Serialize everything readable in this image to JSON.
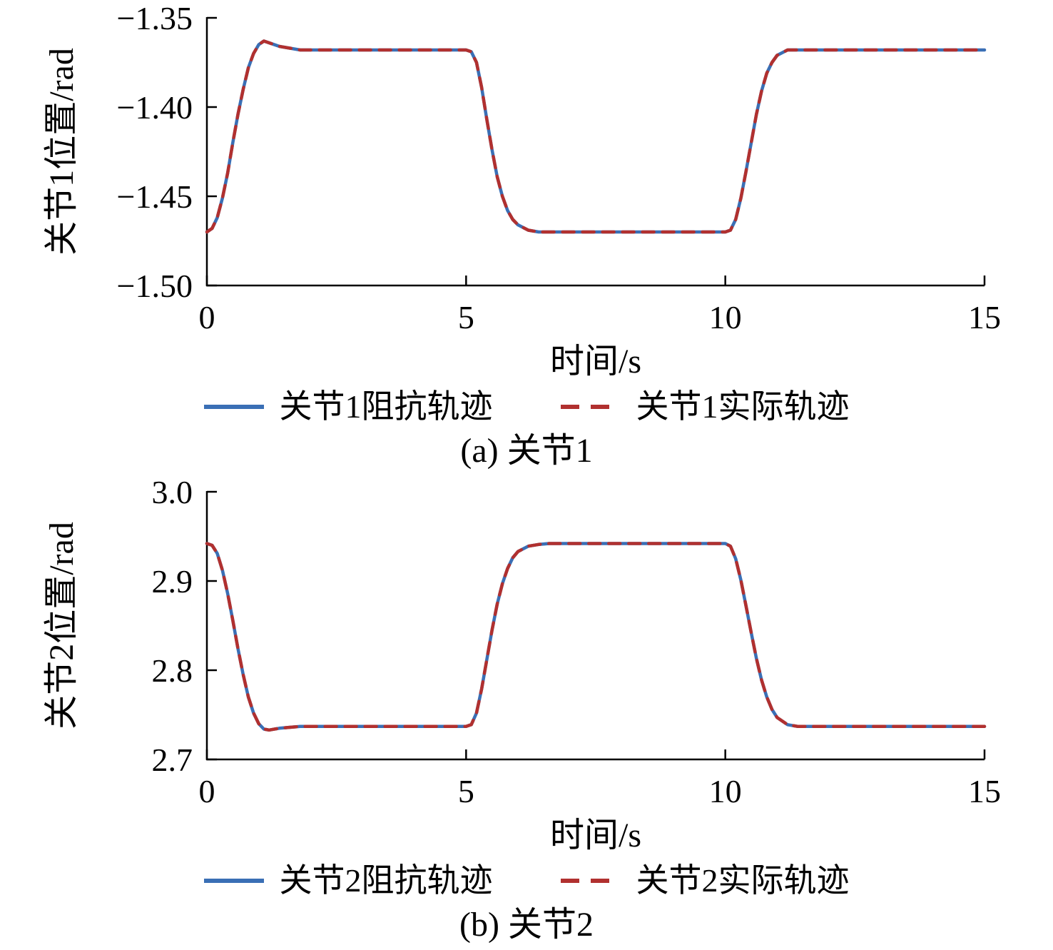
{
  "page": {
    "background": "#ffffff",
    "text_color": "#000000"
  },
  "chart_data": [
    {
      "id": "joint1",
      "type": "line",
      "title": "",
      "xlabel": "时间/s",
      "ylabel": "关节1位置/rad",
      "caption": "(a) 关节1",
      "legend_position": "below",
      "grid": false,
      "xlim": [
        0,
        15
      ],
      "ylim": [
        -1.5,
        -1.35
      ],
      "xticks": [
        0,
        5,
        10,
        15
      ],
      "xtick_labels": [
        "0",
        "5",
        "10",
        "15"
      ],
      "yticks": [
        -1.5,
        -1.45,
        -1.4,
        -1.35
      ],
      "ytick_labels": [
        "−1.50",
        "−1.45",
        "−1.40",
        "−1.35"
      ],
      "x": [
        0,
        0.1,
        0.2,
        0.3,
        0.4,
        0.5,
        0.6,
        0.7,
        0.8,
        0.9,
        1.0,
        1.1,
        1.2,
        1.4,
        1.6,
        1.8,
        2.0,
        2.5,
        3.0,
        3.5,
        4.0,
        4.5,
        5.0,
        5.1,
        5.2,
        5.3,
        5.4,
        5.5,
        5.6,
        5.7,
        5.8,
        5.9,
        6.0,
        6.2,
        6.4,
        6.6,
        7.0,
        7.5,
        8.0,
        8.5,
        9.0,
        9.5,
        10.0,
        10.1,
        10.2,
        10.3,
        10.4,
        10.5,
        10.6,
        10.7,
        10.8,
        10.9,
        11.0,
        11.2,
        11.4,
        11.6,
        12.0,
        13.0,
        14.0,
        15.0
      ],
      "series": [
        {
          "name": "关节1阻抗轨迹",
          "color": "#3A6FB5",
          "dash": null,
          "width": 4.5,
          "values": [
            -1.47,
            -1.468,
            -1.462,
            -1.451,
            -1.437,
            -1.42,
            -1.404,
            -1.39,
            -1.378,
            -1.37,
            -1.365,
            -1.363,
            -1.364,
            -1.366,
            -1.367,
            -1.368,
            -1.368,
            -1.368,
            -1.368,
            -1.368,
            -1.368,
            -1.368,
            -1.368,
            -1.369,
            -1.375,
            -1.389,
            -1.407,
            -1.424,
            -1.439,
            -1.45,
            -1.458,
            -1.463,
            -1.466,
            -1.469,
            -1.47,
            -1.47,
            -1.47,
            -1.47,
            -1.47,
            -1.47,
            -1.47,
            -1.47,
            -1.47,
            -1.469,
            -1.463,
            -1.451,
            -1.436,
            -1.42,
            -1.404,
            -1.391,
            -1.381,
            -1.375,
            -1.371,
            -1.368,
            -1.368,
            -1.368,
            -1.368,
            -1.368,
            -1.368,
            -1.368
          ]
        },
        {
          "name": "关节1实际轨迹",
          "color": "#B1302F",
          "dash": [
            16,
            12
          ],
          "width": 4.5,
          "values": [
            -1.47,
            -1.468,
            -1.462,
            -1.451,
            -1.437,
            -1.42,
            -1.404,
            -1.39,
            -1.378,
            -1.37,
            -1.365,
            -1.363,
            -1.364,
            -1.366,
            -1.367,
            -1.368,
            -1.368,
            -1.368,
            -1.368,
            -1.368,
            -1.368,
            -1.368,
            -1.368,
            -1.369,
            -1.375,
            -1.389,
            -1.407,
            -1.424,
            -1.439,
            -1.45,
            -1.458,
            -1.463,
            -1.466,
            -1.469,
            -1.47,
            -1.47,
            -1.47,
            -1.47,
            -1.47,
            -1.47,
            -1.47,
            -1.47,
            -1.47,
            -1.469,
            -1.463,
            -1.451,
            -1.436,
            -1.42,
            -1.404,
            -1.391,
            -1.381,
            -1.375,
            -1.371,
            -1.368,
            -1.368,
            -1.368,
            -1.368,
            -1.368,
            -1.368,
            -1.368
          ]
        }
      ]
    },
    {
      "id": "joint2",
      "type": "line",
      "title": "",
      "xlabel": "时间/s",
      "ylabel": "关节2位置/rad",
      "caption": "(b) 关节2",
      "legend_position": "below",
      "grid": false,
      "xlim": [
        0,
        15
      ],
      "ylim": [
        2.7,
        3.0
      ],
      "xticks": [
        0,
        5,
        10,
        15
      ],
      "xtick_labels": [
        "0",
        "5",
        "10",
        "15"
      ],
      "yticks": [
        2.7,
        2.8,
        2.9,
        3.0
      ],
      "ytick_labels": [
        "2.7",
        "2.8",
        "2.9",
        "3.0"
      ],
      "x": [
        0,
        0.1,
        0.2,
        0.3,
        0.4,
        0.5,
        0.6,
        0.7,
        0.8,
        0.9,
        1.0,
        1.1,
        1.2,
        1.4,
        1.6,
        1.8,
        2.0,
        2.5,
        3.0,
        3.5,
        4.0,
        4.5,
        5.0,
        5.1,
        5.2,
        5.3,
        5.4,
        5.5,
        5.6,
        5.7,
        5.8,
        5.9,
        6.0,
        6.2,
        6.4,
        6.6,
        7.0,
        7.5,
        8.0,
        8.5,
        9.0,
        9.5,
        10.0,
        10.1,
        10.2,
        10.3,
        10.4,
        10.5,
        10.6,
        10.7,
        10.8,
        10.9,
        11.0,
        11.2,
        11.4,
        11.6,
        12.0,
        13.0,
        14.0,
        15.0
      ],
      "series": [
        {
          "name": "关节2阻抗轨迹",
          "color": "#3A6FB5",
          "dash": null,
          "width": 4.5,
          "values": [
            2.942,
            2.94,
            2.931,
            2.912,
            2.886,
            2.856,
            2.824,
            2.795,
            2.77,
            2.752,
            2.74,
            2.734,
            2.733,
            2.735,
            2.736,
            2.737,
            2.737,
            2.737,
            2.737,
            2.737,
            2.737,
            2.737,
            2.737,
            2.739,
            2.752,
            2.779,
            2.812,
            2.845,
            2.874,
            2.897,
            2.914,
            2.926,
            2.933,
            2.939,
            2.941,
            2.942,
            2.942,
            2.942,
            2.942,
            2.942,
            2.942,
            2.942,
            2.942,
            2.939,
            2.925,
            2.901,
            2.872,
            2.842,
            2.813,
            2.789,
            2.77,
            2.756,
            2.747,
            2.739,
            2.737,
            2.737,
            2.737,
            2.737,
            2.737,
            2.737
          ]
        },
        {
          "name": "关节2实际轨迹",
          "color": "#B1302F",
          "dash": [
            16,
            12
          ],
          "width": 4.5,
          "values": [
            2.942,
            2.94,
            2.931,
            2.912,
            2.886,
            2.856,
            2.824,
            2.795,
            2.77,
            2.752,
            2.74,
            2.734,
            2.733,
            2.735,
            2.736,
            2.737,
            2.737,
            2.737,
            2.737,
            2.737,
            2.737,
            2.737,
            2.737,
            2.739,
            2.752,
            2.779,
            2.812,
            2.845,
            2.874,
            2.897,
            2.914,
            2.926,
            2.933,
            2.939,
            2.941,
            2.942,
            2.942,
            2.942,
            2.942,
            2.942,
            2.942,
            2.942,
            2.942,
            2.939,
            2.925,
            2.901,
            2.872,
            2.842,
            2.813,
            2.789,
            2.77,
            2.756,
            2.747,
            2.739,
            2.737,
            2.737,
            2.737,
            2.737,
            2.737,
            2.737
          ]
        }
      ]
    }
  ]
}
